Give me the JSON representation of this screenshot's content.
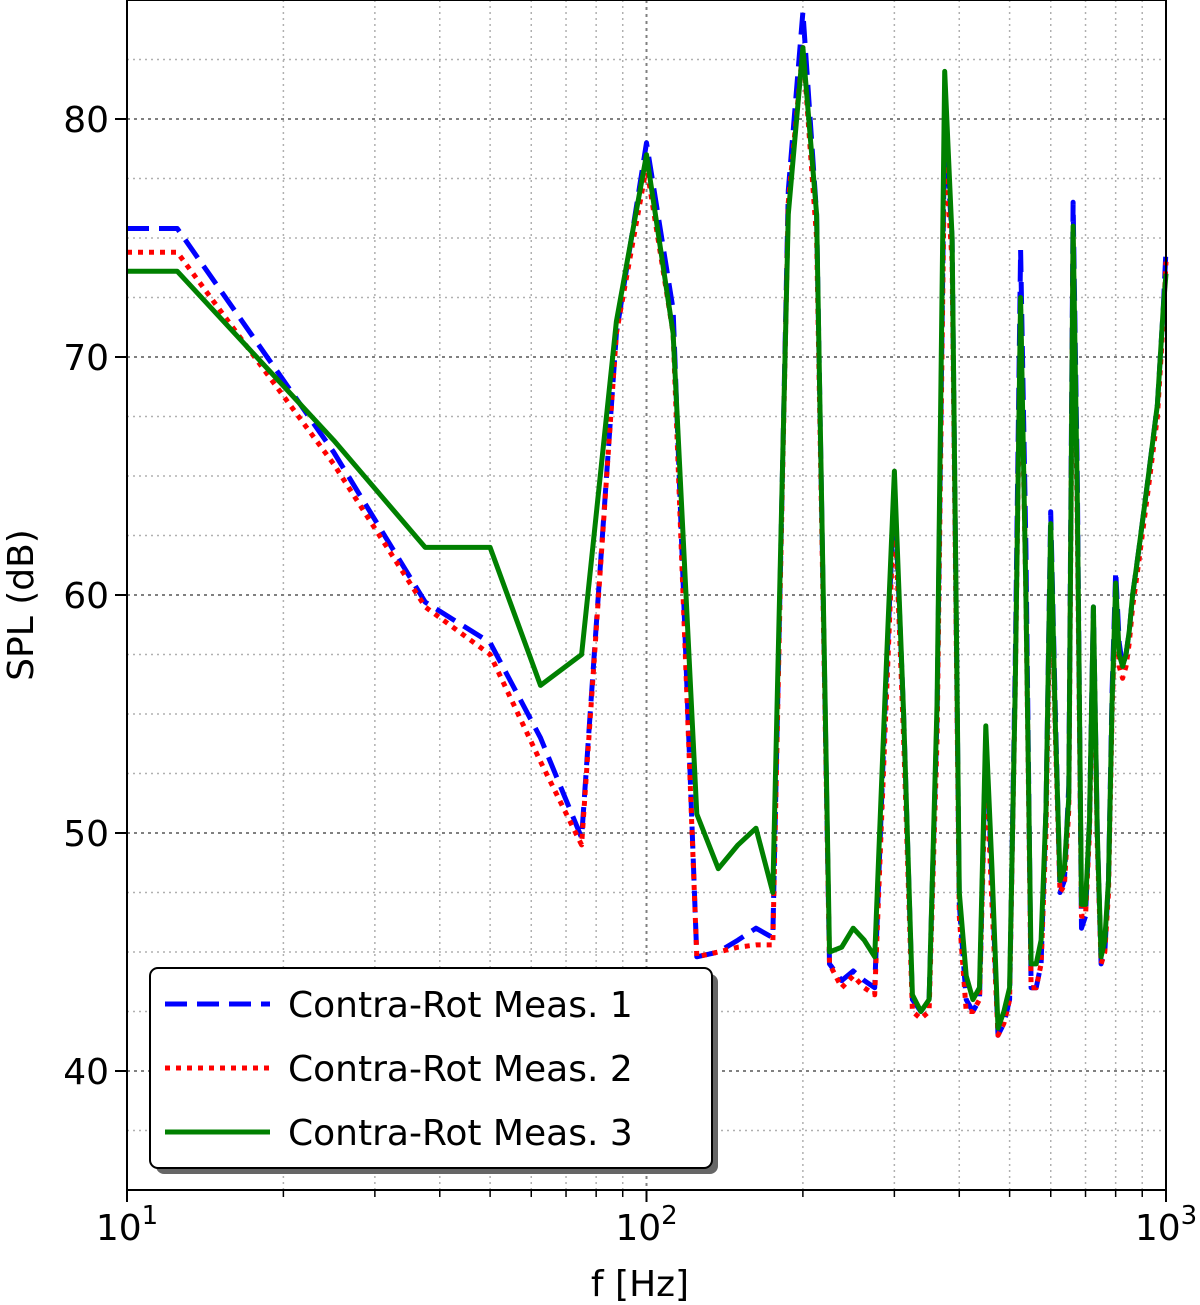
{
  "chart_data": {
    "type": "line",
    "xlabel": "f [Hz]",
    "ylabel": "SPL (dB)",
    "xscale": "log",
    "xlim": [
      10,
      1000
    ],
    "ylim": [
      35,
      85
    ],
    "grid": true,
    "legend_position": "bottom-left",
    "x_ticks": [
      {
        "base": "10",
        "exp": "1"
      },
      {
        "base": "10",
        "exp": "2"
      },
      {
        "base": "10",
        "exp": "3"
      }
    ],
    "y_ticks": [
      "40",
      "50",
      "60",
      "70",
      "80"
    ],
    "series": [
      {
        "name": "Contra-Rot Meas. 1",
        "color": "#0000ff",
        "style": "dashed",
        "x": [
          10,
          12.5,
          25,
          37.5,
          50,
          62.5,
          75,
          87.5,
          100,
          112.5,
          125,
          137.5,
          150,
          162.5,
          175,
          187.5,
          200,
          212.5,
          225,
          237.5,
          250,
          262.5,
          275,
          287.5,
          300,
          312.5,
          325,
          337.5,
          350,
          362.5,
          375,
          387.5,
          400,
          412.5,
          425,
          437.5,
          450,
          462.5,
          475,
          487.5,
          500,
          512.5,
          525,
          537.5,
          550,
          562.5,
          575,
          587.5,
          600,
          612.5,
          625,
          637.5,
          650,
          662.5,
          675,
          687.5,
          700,
          712.5,
          725,
          737.5,
          750,
          762.5,
          775,
          787.5,
          800,
          812.5,
          825,
          837.5,
          850,
          862.5,
          875,
          887.5,
          900,
          912.5,
          925,
          937.5,
          950,
          962.5,
          975,
          987.5,
          1000
        ],
        "y": [
          75.4,
          75.4,
          66.0,
          59.7,
          58.0,
          54.0,
          49.8,
          71.0,
          79.0,
          72.0,
          44.8,
          45.0,
          45.5,
          46.0,
          45.6,
          77.0,
          84.5,
          76.0,
          44.5,
          43.8,
          44.2,
          43.8,
          43.5,
          55.0,
          64.5,
          55.0,
          43.0,
          42.5,
          43.0,
          55.0,
          80.0,
          75.0,
          47.0,
          43.0,
          42.5,
          43.0,
          54.0,
          48.0,
          41.5,
          42.0,
          43.0,
          57.0,
          74.5,
          62.0,
          43.5,
          43.5,
          44.5,
          51.0,
          63.5,
          55.0,
          47.5,
          48.0,
          52.0,
          76.5,
          65.0,
          46.0,
          46.5,
          50.5,
          59.5,
          50.0,
          44.5,
          45.0,
          48.0,
          56.0,
          61.0,
          58.0,
          57.0,
          57.5,
          58.5,
          60.0,
          61.0,
          62.0,
          63.0,
          64.0,
          65.0,
          66.0,
          67.0,
          68.0,
          70.0,
          72.0,
          74.5
        ]
      },
      {
        "name": "Contra-Rot Meas. 2",
        "color": "#ff0000",
        "style": "dotted",
        "x": [
          10,
          12.5,
          25,
          37.5,
          50,
          62.5,
          75,
          87.5,
          100,
          112.5,
          125,
          137.5,
          150,
          162.5,
          175,
          187.5,
          200,
          212.5,
          225,
          237.5,
          250,
          262.5,
          275,
          287.5,
          300,
          312.5,
          325,
          337.5,
          350,
          362.5,
          375,
          387.5,
          400,
          412.5,
          425,
          437.5,
          450,
          462.5,
          475,
          487.5,
          500,
          512.5,
          525,
          537.5,
          550,
          562.5,
          575,
          587.5,
          600,
          612.5,
          625,
          637.5,
          650,
          662.5,
          675,
          687.5,
          700,
          712.5,
          725,
          737.5,
          750,
          762.5,
          775,
          787.5,
          800,
          812.5,
          825,
          837.5,
          850,
          862.5,
          875,
          887.5,
          900,
          912.5,
          925,
          937.5,
          950,
          962.5,
          975,
          987.5,
          1000
        ],
        "y": [
          74.4,
          74.4,
          65.5,
          59.5,
          57.5,
          53.0,
          49.5,
          71.0,
          78.0,
          71.0,
          44.8,
          45.0,
          45.2,
          45.3,
          45.3,
          76.5,
          83.0,
          75.0,
          44.5,
          43.5,
          44.0,
          43.5,
          43.2,
          54.0,
          64.0,
          54.0,
          42.5,
          42.2,
          42.5,
          54.0,
          79.0,
          74.0,
          46.5,
          42.5,
          42.5,
          43.0,
          53.0,
          47.0,
          41.5,
          42.0,
          43.0,
          56.0,
          72.0,
          60.0,
          43.5,
          43.5,
          44.5,
          50.0,
          62.0,
          54.0,
          47.5,
          47.8,
          51.0,
          75.0,
          63.0,
          46.5,
          46.5,
          50.0,
          59.0,
          49.5,
          44.5,
          45.0,
          47.5,
          55.0,
          60.0,
          57.0,
          56.5,
          57.0,
          58.0,
          59.5,
          60.5,
          61.5,
          62.5,
          63.5,
          64.5,
          65.5,
          66.5,
          67.5,
          69.5,
          71.5,
          74.0
        ]
      },
      {
        "name": "Contra-Rot Meas. 3",
        "color": "#008000",
        "style": "solid",
        "x": [
          10,
          12.5,
          25,
          37.5,
          50,
          62.5,
          75,
          87.5,
          100,
          112.5,
          125,
          137.5,
          150,
          162.5,
          175,
          187.5,
          200,
          212.5,
          225,
          237.5,
          250,
          262.5,
          275,
          287.5,
          300,
          312.5,
          325,
          337.5,
          350,
          362.5,
          375,
          387.5,
          400,
          412.5,
          425,
          437.5,
          450,
          462.5,
          475,
          487.5,
          500,
          512.5,
          525,
          537.5,
          550,
          562.5,
          575,
          587.5,
          600,
          612.5,
          625,
          637.5,
          650,
          662.5,
          675,
          687.5,
          700,
          712.5,
          725,
          737.5,
          750,
          762.5,
          775,
          787.5,
          800,
          812.5,
          825,
          837.5,
          850,
          862.5,
          875,
          887.5,
          900,
          912.5,
          925,
          937.5,
          950,
          962.5,
          975,
          987.5,
          1000
        ],
        "y": [
          73.6,
          73.6,
          66.5,
          62.0,
          62.0,
          56.2,
          57.5,
          71.5,
          78.5,
          71.0,
          50.8,
          48.5,
          49.5,
          50.2,
          47.5,
          76.0,
          83.0,
          76.0,
          45.0,
          45.2,
          46.0,
          45.5,
          44.8,
          55.5,
          65.2,
          55.0,
          43.2,
          42.5,
          43.0,
          55.5,
          82.0,
          75.0,
          47.5,
          44.0,
          43.0,
          43.5,
          54.5,
          48.5,
          41.8,
          42.5,
          43.5,
          56.0,
          72.5,
          60.0,
          44.5,
          44.5,
          45.5,
          51.0,
          63.0,
          54.5,
          48.0,
          48.5,
          51.5,
          75.5,
          64.0,
          47.0,
          47.0,
          50.5,
          59.5,
          50.0,
          44.8,
          45.5,
          48.0,
          55.5,
          60.5,
          57.5,
          57.0,
          57.5,
          58.5,
          60.0,
          61.0,
          62.0,
          63.0,
          64.0,
          65.0,
          66.0,
          67.0,
          68.0,
          70.0,
          72.0,
          73.5
        ]
      }
    ]
  }
}
